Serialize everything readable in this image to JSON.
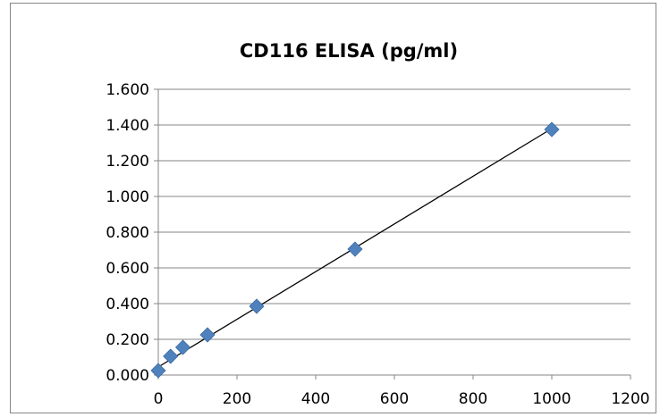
{
  "chart_data": {
    "type": "scatter",
    "title": "CD116 ELISA (pg/ml)",
    "xlabel": "",
    "ylabel": "",
    "xlim": [
      0,
      1200
    ],
    "ylim": [
      0,
      1.6
    ],
    "x_ticks": [
      "0",
      "200",
      "400",
      "600",
      "800",
      "1000",
      "1200"
    ],
    "y_ticks": [
      "0.000",
      "0.200",
      "0.400",
      "0.600",
      "0.800",
      "1.000",
      "1.200",
      "1.400",
      "1.600"
    ],
    "grid": "horizontal",
    "legend": "none",
    "marker_color": "#4f81bd",
    "trendline": {
      "type": "linear",
      "x": [
        0,
        1000
      ],
      "y": [
        0.045,
        1.38
      ],
      "color": "#000000"
    },
    "series": [
      {
        "points": [
          {
            "x": 0,
            "y": 0.025
          },
          {
            "x": 31.25,
            "y": 0.105
          },
          {
            "x": 62.5,
            "y": 0.155
          },
          {
            "x": 125,
            "y": 0.225
          },
          {
            "x": 250,
            "y": 0.385
          },
          {
            "x": 500,
            "y": 0.705
          },
          {
            "x": 1000,
            "y": 1.375
          }
        ]
      }
    ]
  }
}
